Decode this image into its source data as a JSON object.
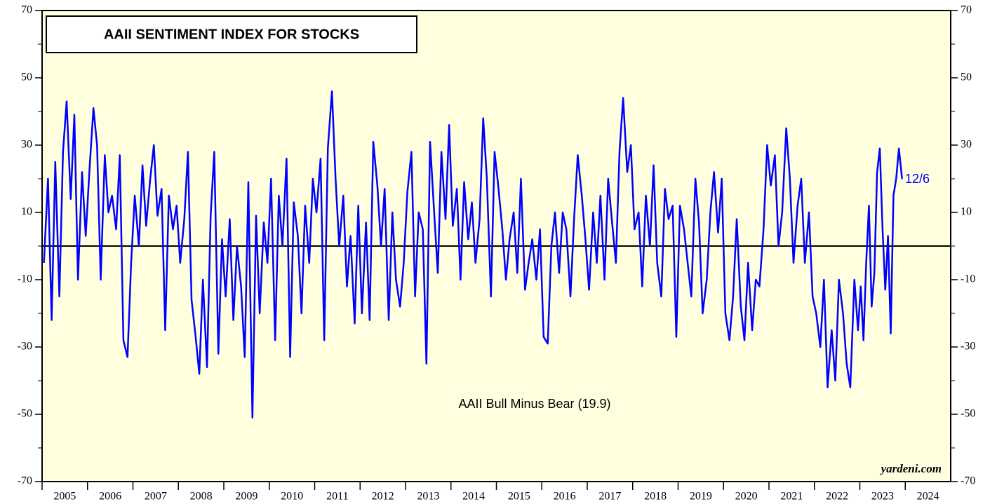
{
  "chart_data": {
    "type": "line",
    "title": "AAII SENTIMENT INDEX FOR STOCKS",
    "annotation": "AAII Bull Minus Bear (19.9)",
    "last_date_label": "12/6",
    "source": "yardeni.com",
    "xlim": [
      2005,
      2025
    ],
    "year_labels": [
      2005,
      2006,
      2007,
      2008,
      2009,
      2010,
      2011,
      2012,
      2013,
      2014,
      2015,
      2016,
      2017,
      2018,
      2019,
      2020,
      2021,
      2022,
      2023,
      2024
    ],
    "ylim": [
      -70,
      70
    ],
    "yticks": [
      -70,
      -50,
      -30,
      -10,
      10,
      30,
      50,
      70
    ],
    "yminor": [
      -60,
      -40,
      -20,
      0,
      20,
      40,
      60
    ],
    "hline": 0,
    "background": "#ffffe0",
    "series": [
      {
        "color": "#0000ff",
        "x": [
          2005.04,
          2005.13,
          2005.21,
          2005.29,
          2005.38,
          2005.46,
          2005.54,
          2005.63,
          2005.71,
          2005.79,
          2005.88,
          2005.96,
          2006.04,
          2006.13,
          2006.21,
          2006.29,
          2006.38,
          2006.46,
          2006.54,
          2006.63,
          2006.71,
          2006.79,
          2006.88,
          2006.96,
          2007.04,
          2007.13,
          2007.21,
          2007.29,
          2007.38,
          2007.46,
          2007.54,
          2007.63,
          2007.71,
          2007.79,
          2007.88,
          2007.96,
          2008.04,
          2008.13,
          2008.21,
          2008.29,
          2008.38,
          2008.46,
          2008.54,
          2008.63,
          2008.71,
          2008.79,
          2008.88,
          2008.96,
          2009.04,
          2009.13,
          2009.21,
          2009.29,
          2009.38,
          2009.46,
          2009.54,
          2009.63,
          2009.71,
          2009.79,
          2009.88,
          2009.96,
          2010.04,
          2010.13,
          2010.21,
          2010.29,
          2010.38,
          2010.46,
          2010.54,
          2010.63,
          2010.71,
          2010.79,
          2010.88,
          2010.96,
          2011.04,
          2011.13,
          2011.21,
          2011.29,
          2011.38,
          2011.46,
          2011.54,
          2011.63,
          2011.71,
          2011.79,
          2011.88,
          2011.96,
          2012.04,
          2012.13,
          2012.21,
          2012.29,
          2012.38,
          2012.46,
          2012.54,
          2012.63,
          2012.71,
          2012.79,
          2012.88,
          2012.96,
          2013.04,
          2013.13,
          2013.21,
          2013.29,
          2013.38,
          2013.46,
          2013.54,
          2013.63,
          2013.71,
          2013.79,
          2013.88,
          2013.96,
          2014.04,
          2014.13,
          2014.21,
          2014.29,
          2014.38,
          2014.46,
          2014.54,
          2014.63,
          2014.71,
          2014.79,
          2014.88,
          2014.96,
          2015.04,
          2015.13,
          2015.21,
          2015.29,
          2015.38,
          2015.46,
          2015.54,
          2015.63,
          2015.71,
          2015.79,
          2015.88,
          2015.96,
          2016.04,
          2016.13,
          2016.21,
          2016.29,
          2016.38,
          2016.46,
          2016.54,
          2016.63,
          2016.71,
          2016.79,
          2016.88,
          2016.96,
          2017.04,
          2017.13,
          2017.21,
          2017.29,
          2017.38,
          2017.46,
          2017.54,
          2017.63,
          2017.71,
          2017.79,
          2017.88,
          2017.96,
          2018.04,
          2018.13,
          2018.21,
          2018.29,
          2018.38,
          2018.46,
          2018.54,
          2018.63,
          2018.71,
          2018.79,
          2018.88,
          2018.96,
          2019.04,
          2019.13,
          2019.21,
          2019.29,
          2019.38,
          2019.46,
          2019.54,
          2019.63,
          2019.71,
          2019.79,
          2019.88,
          2019.96,
          2020.04,
          2020.13,
          2020.21,
          2020.29,
          2020.38,
          2020.46,
          2020.54,
          2020.63,
          2020.71,
          2020.79,
          2020.88,
          2020.96,
          2021.04,
          2021.13,
          2021.21,
          2021.29,
          2021.38,
          2021.46,
          2021.54,
          2021.63,
          2021.71,
          2021.79,
          2021.88,
          2021.96,
          2022.04,
          2022.13,
          2022.21,
          2022.29,
          2022.38,
          2022.46,
          2022.54,
          2022.63,
          2022.71,
          2022.79,
          2022.88,
          2022.96,
          2023.02,
          2023.08,
          2023.14,
          2023.2,
          2023.26,
          2023.32,
          2023.38,
          2023.44,
          2023.5,
          2023.56,
          2023.62,
          2023.68,
          2023.74,
          2023.8,
          2023.86,
          2023.93
        ],
        "values": [
          -5,
          20,
          -22,
          25,
          -15,
          28,
          43,
          14,
          39,
          -10,
          22,
          3,
          22,
          41,
          30,
          -10,
          27,
          10,
          15,
          5,
          27,
          -28,
          -33,
          -5,
          15,
          0,
          24,
          6,
          20,
          30,
          9,
          17,
          -25,
          15,
          5,
          12,
          -5,
          8,
          28,
          -16,
          -27,
          -38,
          -10,
          -36,
          9,
          28,
          -32,
          2,
          -15,
          8,
          -22,
          0,
          -12,
          -33,
          19,
          -51,
          9,
          -20,
          7,
          -5,
          20,
          -28,
          15,
          0,
          26,
          -33,
          13,
          3,
          -20,
          12,
          -5,
          20,
          10,
          26,
          -28,
          29,
          46,
          20,
          0,
          15,
          -12,
          3,
          -23,
          12,
          -20,
          7,
          -22,
          31,
          18,
          0,
          17,
          -22,
          10,
          -10,
          -18,
          -5,
          16,
          28,
          -15,
          10,
          5,
          -35,
          31,
          10,
          -8,
          28,
          8,
          36,
          6,
          17,
          -10,
          19,
          2,
          13,
          -5,
          8,
          38,
          20,
          -15,
          28,
          18,
          5,
          -10,
          2,
          10,
          -8,
          20,
          -13,
          -5,
          2,
          -10,
          5,
          -27,
          -29,
          0,
          10,
          -8,
          10,
          5,
          -15,
          8,
          27,
          15,
          2,
          -13,
          10,
          -5,
          15,
          -10,
          20,
          8,
          -5,
          28,
          44,
          22,
          30,
          5,
          10,
          -12,
          15,
          0,
          24,
          -5,
          -15,
          17,
          8,
          12,
          -27,
          12,
          5,
          -5,
          -15,
          20,
          7,
          -20,
          -10,
          10,
          22,
          4,
          20,
          -20,
          -28,
          -15,
          8,
          -18,
          -28,
          -5,
          -25,
          -10,
          -12,
          5,
          30,
          18,
          27,
          0,
          10,
          35,
          20,
          -5,
          12,
          20,
          -5,
          10,
          -15,
          -20,
          -30,
          -10,
          -42,
          -25,
          -40,
          -10,
          -20,
          -35,
          -42,
          -10,
          -25,
          -12,
          -28,
          -5,
          12,
          -18,
          -8,
          22,
          29,
          5,
          -13,
          3,
          -26,
          15,
          20,
          29,
          19.9
        ]
      }
    ]
  }
}
